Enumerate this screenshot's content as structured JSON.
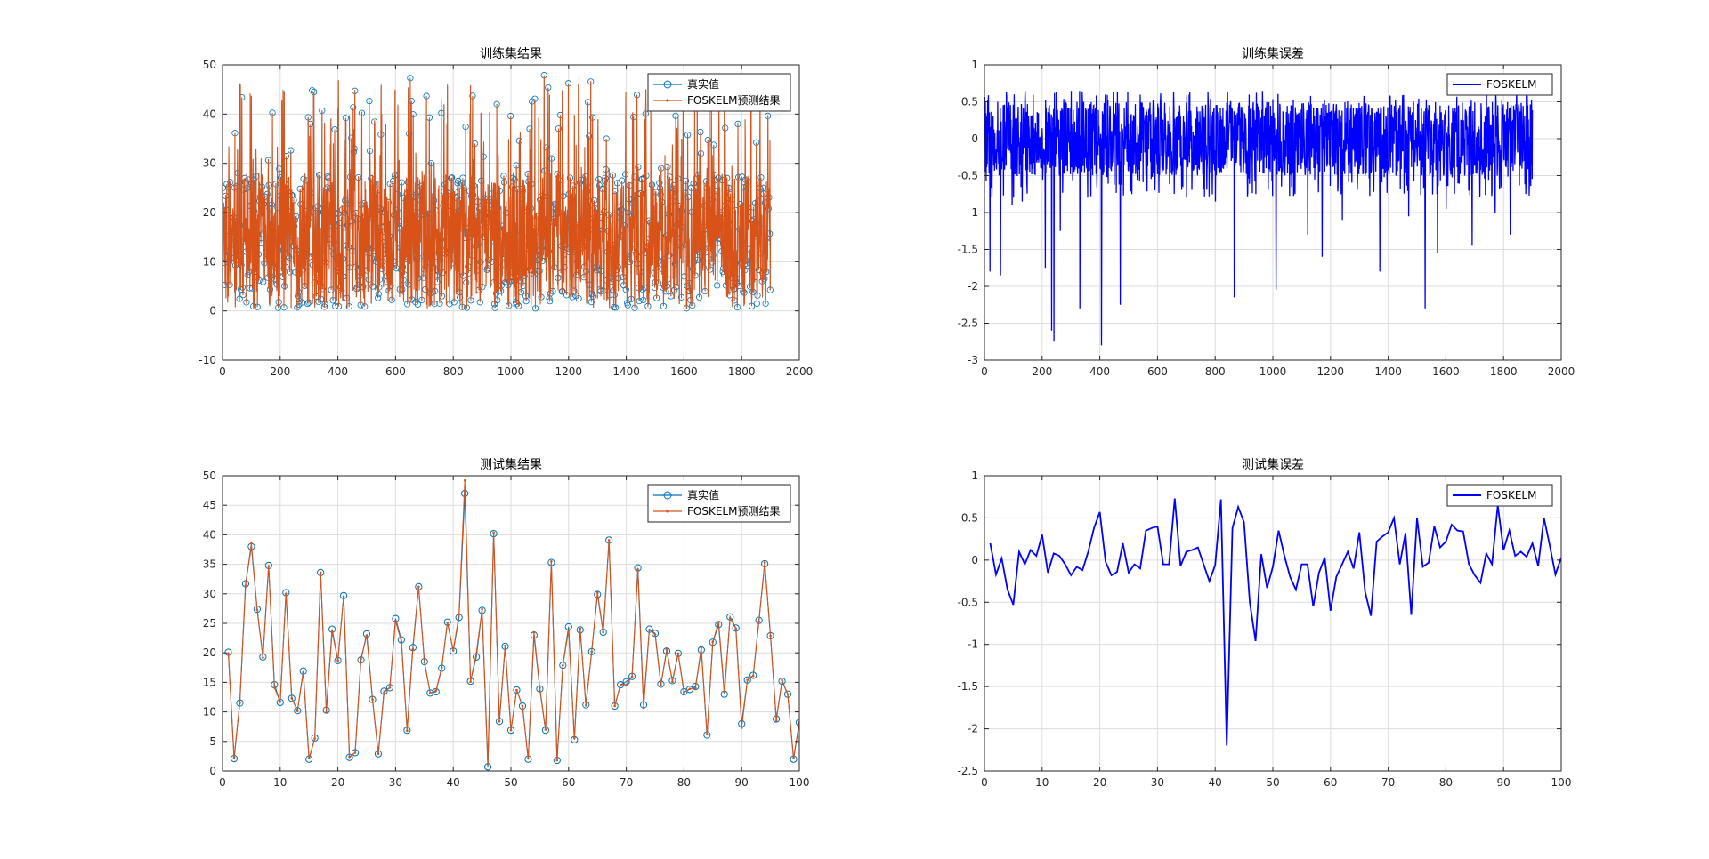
{
  "figure_colors": {
    "background": "#ffffff",
    "axes": "#262626",
    "grid": "#dcdcdc",
    "truth": "#0072BD",
    "pred": "#D95319",
    "error": "#0000FF"
  },
  "chart_data": [
    {
      "type": "line",
      "title": "训练集结果",
      "xlabel": "",
      "ylabel": "",
      "xlim": [
        0,
        2000
      ],
      "ylim": [
        -10,
        50
      ],
      "xticks": [
        0,
        200,
        400,
        600,
        800,
        1000,
        1200,
        1400,
        1600,
        1800,
        2000
      ],
      "yticks": [
        -10,
        0,
        10,
        20,
        30,
        40,
        50
      ],
      "grid": true,
      "legend_position": "top-right",
      "n_points": 1900,
      "series": [
        {
          "name": "真实值",
          "style": "line-circle",
          "color": "#0072BD"
        },
        {
          "name": "FOSKELM预测结果",
          "style": "line-dot",
          "color": "#D95319"
        }
      ],
      "sampled_values": [
        25,
        3,
        19,
        14,
        27,
        44,
        8,
        31,
        12,
        3,
        21,
        45,
        16,
        9,
        2,
        28,
        38,
        11,
        5,
        24,
        13,
        41,
        7,
        19,
        33,
        4,
        15,
        22,
        10,
        40,
        6,
        26,
        17,
        2,
        36,
        12,
        20,
        9,
        30,
        14,
        3,
        46,
        18,
        8,
        25,
        11,
        34,
        5,
        21,
        16,
        42,
        7,
        13,
        28,
        1,
        23,
        37,
        10,
        19,
        6,
        31,
        15,
        4,
        27,
        12,
        48,
        9,
        22,
        17,
        3,
        35,
        11,
        26,
        8,
        20,
        14,
        2,
        39,
        18,
        7,
        29,
        13,
        24,
        5,
        43,
        16,
        10,
        32,
        4,
        21,
        15,
        9,
        27,
        1,
        38,
        12,
        19,
        6,
        25,
        11
      ]
    },
    {
      "type": "line",
      "title": "训练集误差",
      "xlabel": "",
      "ylabel": "",
      "xlim": [
        0,
        2000
      ],
      "ylim": [
        -3,
        1
      ],
      "xticks": [
        0,
        200,
        400,
        600,
        800,
        1000,
        1200,
        1400,
        1600,
        1800,
        2000
      ],
      "yticks": [
        -3,
        -2.5,
        -2,
        -1.5,
        -1,
        -0.5,
        0,
        0.5,
        1
      ],
      "grid": true,
      "legend_position": "top-right",
      "n_points": 1900,
      "series": [
        {
          "name": "FOSKELM",
          "style": "line",
          "color": "#0000FF"
        }
      ],
      "large_negative_errors": [
        {
          "x": 18,
          "y": -1.8
        },
        {
          "x": 55,
          "y": -1.85
        },
        {
          "x": 95,
          "y": -0.9
        },
        {
          "x": 130,
          "y": -0.85
        },
        {
          "x": 210,
          "y": -1.75
        },
        {
          "x": 232,
          "y": -2.6
        },
        {
          "x": 240,
          "y": -2.75
        },
        {
          "x": 262,
          "y": -1.25
        },
        {
          "x": 330,
          "y": -2.3
        },
        {
          "x": 405,
          "y": -2.8
        },
        {
          "x": 470,
          "y": -2.25
        },
        {
          "x": 510,
          "y": -0.75
        },
        {
          "x": 590,
          "y": -0.7
        },
        {
          "x": 700,
          "y": -0.8
        },
        {
          "x": 800,
          "y": -0.85
        },
        {
          "x": 865,
          "y": -2.15
        },
        {
          "x": 940,
          "y": -0.75
        },
        {
          "x": 1010,
          "y": -2.05
        },
        {
          "x": 1120,
          "y": -1.3
        },
        {
          "x": 1170,
          "y": -1.6
        },
        {
          "x": 1240,
          "y": -1.1
        },
        {
          "x": 1370,
          "y": -1.8
        },
        {
          "x": 1470,
          "y": -1.05
        },
        {
          "x": 1527,
          "y": -2.3
        },
        {
          "x": 1570,
          "y": -1.55
        },
        {
          "x": 1600,
          "y": -0.95
        },
        {
          "x": 1690,
          "y": -1.45
        },
        {
          "x": 1770,
          "y": -1.0
        },
        {
          "x": 1822,
          "y": -1.3
        }
      ]
    },
    {
      "type": "line",
      "title": "测试集结果",
      "xlabel": "",
      "ylabel": "",
      "xlim": [
        0,
        100
      ],
      "ylim": [
        0,
        50
      ],
      "xticks": [
        0,
        10,
        20,
        30,
        40,
        50,
        60,
        70,
        80,
        90,
        100
      ],
      "yticks": [
        0,
        5,
        10,
        15,
        20,
        25,
        30,
        35,
        40,
        45,
        50
      ],
      "grid": true,
      "legend_position": "top-right",
      "x": [
        1,
        2,
        3,
        4,
        5,
        6,
        7,
        8,
        9,
        10,
        11,
        12,
        13,
        14,
        15,
        16,
        17,
        18,
        19,
        20,
        21,
        22,
        23,
        24,
        25,
        26,
        27,
        28,
        29,
        30,
        31,
        32,
        33,
        34,
        35,
        36,
        37,
        38,
        39,
        40,
        41,
        42,
        43,
        44,
        45,
        46,
        47,
        48,
        49,
        50,
        51,
        52,
        53,
        54,
        55,
        56,
        57,
        58,
        59,
        60,
        61,
        62,
        63,
        64,
        65,
        66,
        67,
        68,
        69,
        70,
        71,
        72,
        73,
        74,
        75,
        76,
        77,
        78,
        79,
        80,
        81,
        82,
        83,
        84,
        85,
        86,
        87,
        88,
        89,
        90,
        91,
        92,
        93,
        94,
        95,
        96,
        97,
        98,
        99,
        100
      ],
      "series": [
        {
          "name": "真实值",
          "style": "line-circle",
          "color": "#0072BD",
          "values": [
            20.1,
            2.1,
            11.5,
            31.7,
            38.0,
            27.4,
            19.3,
            34.8,
            14.6,
            11.6,
            30.2,
            12.3,
            10.2,
            16.9,
            2.0,
            5.6,
            33.6,
            10.3,
            24.0,
            18.7,
            29.7,
            2.3,
            3.1,
            18.8,
            23.2,
            12.1,
            2.9,
            13.5,
            14.1,
            25.8,
            22.2,
            6.9,
            20.9,
            31.2,
            18.5,
            13.2,
            13.4,
            17.4,
            25.2,
            20.3,
            26.0,
            47.0,
            15.2,
            19.3,
            27.2,
            0.7,
            40.2,
            8.4,
            21.1,
            6.9,
            13.7,
            11.0,
            2.0,
            23.0,
            13.9,
            6.9,
            35.3,
            1.8,
            17.9,
            24.4,
            5.3,
            23.9,
            11.2,
            20.2,
            29.9,
            23.5,
            39.1,
            11.0,
            14.6,
            15.1,
            16.0,
            34.4,
            11.2,
            24.0,
            23.3,
            14.7,
            20.3,
            15.3,
            19.9,
            13.4,
            13.8,
            14.3,
            20.5,
            6.1,
            21.8,
            24.8,
            13.0,
            26.1,
            24.2,
            8.0,
            15.4,
            16.2,
            25.5,
            35.1,
            22.9,
            8.8,
            15.2,
            13.0,
            2.0,
            8.2
          ]
        },
        {
          "name": "FOSKELM预测结果",
          "style": "line-dot",
          "color": "#D95319",
          "values": [
            19.9,
            2.27,
            11.5,
            31.4,
            38.53,
            27.3,
            19.18,
            34.7,
            14.1,
            11.7,
            30.0,
            12.3,
            10.15,
            16.7,
            2.2,
            5.5,
            33.6,
            9.9,
            23.6,
            18.7,
            29.55,
            2.4,
            3.1,
            19.0,
            22.9,
            12.1,
            2.9,
            13.3,
            14.1,
            25.4,
            21.9,
            6.8,
            20.6,
            31.2,
            18.4,
            13.2,
            13.6,
            17.5,
            25.1,
            20.4,
            26.5,
            49.2,
            15.1,
            19.9,
            27.4,
            1.2,
            40.4,
            8.4,
            21.2,
            6.9,
            13.7,
            11.0,
            2.1,
            23.5,
            14.1,
            7.0,
            35.5,
            1.8,
            17.9,
            23.8,
            5.6,
            24.1,
            11.1,
            20.2,
            30.2,
            23.5,
            39.1,
            11.0,
            14.6,
            14.6,
            16.0,
            34.1,
            10.7,
            23.9,
            23.1,
            14.5,
            20.6,
            15.1,
            19.9,
            13.3,
            13.9,
            14.0,
            20.9,
            6.2,
            21.9,
            25.2,
            13.4,
            25.9,
            24.1,
            7.3,
            15.4,
            16.1,
            25.3,
            35.3,
            22.9,
            8.5,
            15.4,
            13.0,
            2.2,
            8.2
          ]
        }
      ]
    },
    {
      "type": "line",
      "title": "测试集误差",
      "xlabel": "",
      "ylabel": "",
      "xlim": [
        0,
        100
      ],
      "ylim": [
        -2.5,
        1
      ],
      "xticks": [
        0,
        10,
        20,
        30,
        40,
        50,
        60,
        70,
        80,
        90,
        100
      ],
      "yticks": [
        -2.5,
        -2,
        -1.5,
        -1,
        -0.5,
        0,
        0.5,
        1
      ],
      "grid": true,
      "legend_position": "top-right",
      "x": [
        1,
        2,
        3,
        4,
        5,
        6,
        7,
        8,
        9,
        10,
        11,
        12,
        13,
        14,
        15,
        16,
        17,
        18,
        19,
        20,
        21,
        22,
        23,
        24,
        25,
        26,
        27,
        28,
        29,
        30,
        31,
        32,
        33,
        34,
        35,
        36,
        37,
        38,
        39,
        40,
        41,
        42,
        43,
        44,
        45,
        46,
        47,
        48,
        49,
        50,
        51,
        52,
        53,
        54,
        55,
        56,
        57,
        58,
        59,
        60,
        61,
        62,
        63,
        64,
        65,
        66,
        67,
        68,
        69,
        70,
        71,
        72,
        73,
        74,
        75,
        76,
        77,
        78,
        79,
        80,
        81,
        82,
        83,
        84,
        85,
        86,
        87,
        88,
        89,
        90,
        91,
        92,
        93,
        94,
        95,
        96,
        97,
        98,
        99,
        100
      ],
      "series": [
        {
          "name": "FOSKELM",
          "style": "line",
          "color": "#0000FF",
          "values": [
            0.2,
            -0.17,
            0.02,
            -0.35,
            -0.53,
            0.1,
            -0.05,
            0.12,
            0.05,
            0.3,
            -0.15,
            0.08,
            0.05,
            -0.05,
            -0.18,
            -0.08,
            -0.12,
            0.1,
            0.38,
            0.57,
            -0.02,
            -0.18,
            -0.14,
            0.2,
            -0.15,
            -0.05,
            -0.1,
            0.35,
            0.38,
            0.4,
            -0.05,
            -0.05,
            0.73,
            -0.07,
            0.1,
            0.12,
            0.15,
            -0.05,
            -0.25,
            -0.06,
            0.72,
            -2.2,
            0.38,
            0.63,
            0.45,
            -0.5,
            -0.96,
            0.07,
            -0.33,
            -0.08,
            0.35,
            0.05,
            -0.2,
            -0.35,
            -0.05,
            -0.05,
            -0.55,
            -0.15,
            0.03,
            -0.6,
            -0.2,
            -0.05,
            0.1,
            -0.1,
            0.33,
            -0.38,
            -0.66,
            0.22,
            0.28,
            0.33,
            0.5,
            -0.05,
            0.32,
            -0.65,
            0.5,
            -0.08,
            -0.03,
            0.4,
            0.15,
            0.22,
            0.42,
            0.35,
            0.34,
            -0.05,
            -0.18,
            -0.27,
            0.08,
            -0.05,
            0.65,
            0.12,
            0.35,
            0.05,
            0.1,
            0.04,
            0.2,
            -0.07,
            0.5,
            0.18,
            -0.17,
            0.03
          ]
        }
      ]
    }
  ]
}
